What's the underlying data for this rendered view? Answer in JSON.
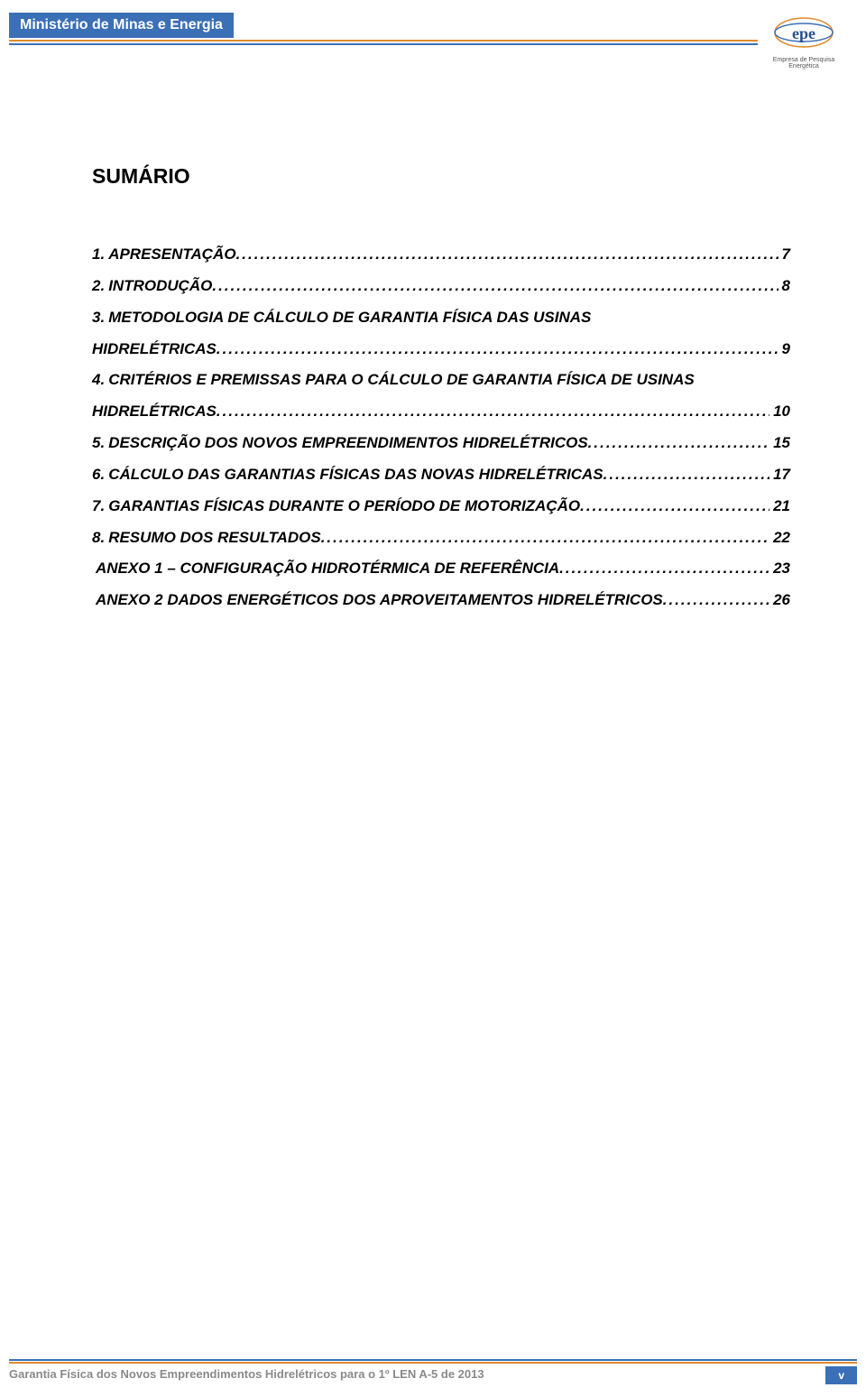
{
  "header": {
    "ministry": "Ministério de Minas e Energia",
    "logo_text_top": "epe",
    "logo_caption": "Empresa de Pesquisa Energética",
    "tab_color": "#3b6fb6",
    "orange": "#e08a2f"
  },
  "title": "SUMÁRIO",
  "toc": [
    {
      "num": "1.",
      "text": "APRESENTAÇÃO",
      "page": "7"
    },
    {
      "num": "2.",
      "text": "INTRODUÇÃO",
      "page": "8"
    },
    {
      "num": "3.",
      "text": "METODOLOGIA DE CÁLCULO DE GARANTIA FÍSICA DAS USINAS",
      "wrap": "HIDRELÉTRICAS",
      "page": "9"
    },
    {
      "num": "4.",
      "text": "CRITÉRIOS E PREMISSAS PARA O CÁLCULO DE GARANTIA FÍSICA DE USINAS",
      "wrap": "HIDRELÉTRICAS",
      "page": "10"
    },
    {
      "num": "5.",
      "text": "DESCRIÇÃO DOS NOVOS EMPREENDIMENTOS HIDRELÉTRICOS",
      "page": "15"
    },
    {
      "num": "6.",
      "text": "CÁLCULO DAS GARANTIAS FÍSICAS DAS NOVAS HIDRELÉTRICAS",
      "page": "17"
    },
    {
      "num": "7.",
      "text": "GARANTIAS FÍSICAS DURANTE O PERÍODO DE MOTORIZAÇÃO",
      "page": "21"
    },
    {
      "num": "8.",
      "text": "RESUMO DOS RESULTADOS",
      "page": "22"
    },
    {
      "num": "",
      "text": "ANEXO 1 – CONFIGURAÇÃO HIDROTÉRMICA DE REFERÊNCIA",
      "page": "23"
    },
    {
      "num": "",
      "text": "ANEXO 2 DADOS ENERGÉTICOS DOS APROVEITAMENTOS HIDRELÉTRICOS",
      "page": "26"
    }
  ],
  "footer": {
    "text": "Garantia Física dos Novos Empreendimentos Hidrelétricos para o 1º LEN A-5 de 2013",
    "page_label": "v"
  }
}
